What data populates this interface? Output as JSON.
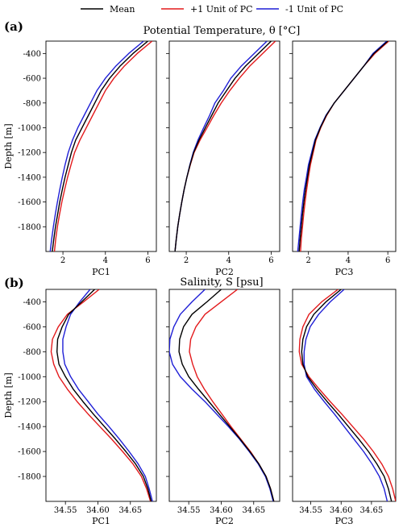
{
  "legend": [
    {
      "label": "Mean",
      "color": "#000000"
    },
    {
      "label": "+1 Unit of PC",
      "color": "#e31a1c"
    },
    {
      "label": "-1 Unit of PC",
      "color": "#1f1fd6"
    }
  ],
  "chart_data": [
    {
      "type": "line",
      "panel_label": "(a)",
      "title": "Potential Temperature, θ [°C]",
      "ylabel": "Depth [m]",
      "xlabels": [
        "PC1",
        "PC2",
        "PC3"
      ],
      "xlim": [
        1.2,
        6.4
      ],
      "xticks": [
        2,
        4,
        6
      ],
      "ylim": [
        -2000,
        -300
      ],
      "yticks": [
        -400,
        -600,
        -800,
        -1000,
        -1200,
        -1400,
        -1600,
        -1800
      ],
      "depth": [
        -300,
        -400,
        -500,
        -600,
        -700,
        -800,
        -900,
        -1000,
        -1100,
        -1200,
        -1300,
        -1400,
        -1500,
        -1600,
        -1700,
        -1800,
        -1900,
        -2000
      ],
      "panels": [
        {
          "name": "PC1",
          "series": [
            {
              "name": "Mean",
              "values": [
                6.0,
                5.3,
                4.7,
                4.2,
                3.8,
                3.5,
                3.2,
                2.9,
                2.6,
                2.4,
                2.25,
                2.1,
                1.97,
                1.85,
                1.75,
                1.65,
                1.57,
                1.5
              ]
            },
            {
              "name": "+1 Unit of PC",
              "values": [
                6.2,
                5.5,
                4.9,
                4.4,
                4.0,
                3.7,
                3.4,
                3.1,
                2.8,
                2.55,
                2.38,
                2.22,
                2.08,
                1.95,
                1.84,
                1.74,
                1.66,
                1.6
              ]
            },
            {
              "name": "-1 Unit of PC",
              "values": [
                5.8,
                5.1,
                4.5,
                4.0,
                3.6,
                3.3,
                3.0,
                2.7,
                2.45,
                2.25,
                2.1,
                1.97,
                1.85,
                1.74,
                1.64,
                1.55,
                1.47,
                1.4
              ]
            }
          ]
        },
        {
          "name": "PC2",
          "series": [
            {
              "name": "Mean",
              "values": [
                6.0,
                5.4,
                4.8,
                4.3,
                3.9,
                3.5,
                3.2,
                2.9,
                2.6,
                2.35,
                2.18,
                2.03,
                1.9,
                1.79,
                1.69,
                1.6,
                1.53,
                1.47
              ]
            },
            {
              "name": "+1 Unit of PC",
              "values": [
                6.2,
                5.6,
                5.0,
                4.5,
                4.05,
                3.65,
                3.3,
                2.98,
                2.65,
                2.37,
                2.19,
                2.03,
                1.9,
                1.79,
                1.69,
                1.6,
                1.53,
                1.47
              ]
            },
            {
              "name": "-1 Unit of PC",
              "values": [
                5.8,
                5.2,
                4.6,
                4.1,
                3.75,
                3.35,
                3.1,
                2.82,
                2.55,
                2.33,
                2.17,
                2.03,
                1.9,
                1.79,
                1.69,
                1.6,
                1.53,
                1.47
              ]
            }
          ]
        },
        {
          "name": "PC3",
          "series": [
            {
              "name": "Mean",
              "values": [
                6.0,
                5.3,
                4.8,
                4.3,
                3.8,
                3.3,
                2.9,
                2.6,
                2.35,
                2.2,
                2.05,
                1.95,
                1.85,
                1.77,
                1.7,
                1.64,
                1.58,
                1.53
              ]
            },
            {
              "name": "+1 Unit of PC",
              "values": [
                6.05,
                5.35,
                4.8,
                4.3,
                3.8,
                3.3,
                2.92,
                2.62,
                2.38,
                2.24,
                2.1,
                2.0,
                1.91,
                1.83,
                1.76,
                1.7,
                1.64,
                1.6
              ]
            },
            {
              "name": "-1 Unit of PC",
              "values": [
                5.95,
                5.25,
                4.8,
                4.3,
                3.8,
                3.3,
                2.88,
                2.58,
                2.32,
                2.16,
                2.0,
                1.9,
                1.79,
                1.71,
                1.64,
                1.58,
                1.52,
                1.46
              ]
            }
          ]
        }
      ]
    },
    {
      "type": "line",
      "panel_label": "(b)",
      "title": "Salinity, S [psu]",
      "ylabel": "Depth [m]",
      "xlabels": [
        "PC1",
        "PC2",
        "PC3"
      ],
      "xlim": [
        34.52,
        34.69
      ],
      "xticks": [
        34.55,
        34.6,
        34.65
      ],
      "xticklabels": [
        "34.55",
        "34.60",
        "34.65"
      ],
      "ylim": [
        -2000,
        -300
      ],
      "yticks": [
        -400,
        -600,
        -800,
        -1000,
        -1200,
        -1400,
        -1600,
        -1800
      ],
      "depth": [
        -300,
        -400,
        -500,
        -600,
        -700,
        -800,
        -900,
        -1000,
        -1100,
        -1200,
        -1300,
        -1400,
        -1500,
        -1600,
        -1700,
        -1800,
        -1900,
        -2000
      ],
      "panels": [
        {
          "name": "PC1",
          "series": [
            {
              "name": "Mean",
              "values": [
                34.595,
                34.575,
                34.555,
                34.545,
                34.538,
                34.537,
                34.54,
                34.55,
                34.562,
                34.577,
                34.593,
                34.61,
                34.627,
                34.643,
                34.658,
                34.67,
                34.677,
                34.682
              ]
            },
            {
              "name": "+1 Unit of PC",
              "values": [
                34.602,
                34.578,
                34.553,
                34.539,
                34.53,
                34.528,
                34.532,
                34.54,
                34.553,
                34.568,
                34.585,
                34.603,
                34.621,
                34.638,
                34.654,
                34.667,
                34.675,
                34.681
              ]
            },
            {
              "name": "-1 Unit of PC",
              "values": [
                34.588,
                34.572,
                34.558,
                34.551,
                34.546,
                34.546,
                34.549,
                34.558,
                34.57,
                34.585,
                34.6,
                34.617,
                34.633,
                34.648,
                34.662,
                34.673,
                34.679,
                34.684
              ]
            }
          ]
        },
        {
          "name": "PC2",
          "series": [
            {
              "name": "Mean",
              "values": [
                34.6,
                34.578,
                34.555,
                34.542,
                34.536,
                34.535,
                34.54,
                34.55,
                34.565,
                34.581,
                34.597,
                34.613,
                34.629,
                34.644,
                34.658,
                34.669,
                34.676,
                34.681
              ]
            },
            {
              "name": "+1 Unit of PC",
              "values": [
                34.625,
                34.6,
                34.575,
                34.561,
                34.553,
                34.551,
                34.556,
                34.563,
                34.574,
                34.587,
                34.601,
                34.615,
                34.63,
                34.645,
                34.658,
                34.669,
                34.676,
                34.681
              ]
            },
            {
              "name": "-1 Unit of PC",
              "values": [
                34.575,
                34.555,
                34.537,
                34.527,
                34.521,
                34.52,
                34.525,
                34.537,
                34.555,
                34.575,
                34.593,
                34.611,
                34.628,
                34.643,
                34.657,
                34.668,
                34.675,
                34.68
              ]
            }
          ]
        },
        {
          "name": "PC3",
          "series": [
            {
              "name": "Mean",
              "values": [
                34.6,
                34.575,
                34.555,
                34.543,
                34.537,
                34.535,
                34.537,
                34.545,
                34.56,
                34.577,
                34.595,
                34.612,
                34.629,
                34.645,
                34.659,
                34.671,
                34.678,
                34.683
              ]
            },
            {
              "name": "+1 Unit of PC",
              "values": [
                34.595,
                34.568,
                34.547,
                34.537,
                34.532,
                34.531,
                34.535,
                34.547,
                34.564,
                34.582,
                34.601,
                34.619,
                34.637,
                34.653,
                34.667,
                34.678,
                34.685,
                34.69
              ]
            },
            {
              "name": "-1 Unit of PC",
              "values": [
                34.605,
                34.582,
                34.563,
                34.549,
                34.542,
                34.539,
                34.539,
                34.543,
                34.556,
                34.572,
                34.589,
                34.605,
                34.621,
                34.637,
                34.651,
                34.663,
                34.671,
                34.676
              ]
            }
          ]
        }
      ]
    }
  ]
}
